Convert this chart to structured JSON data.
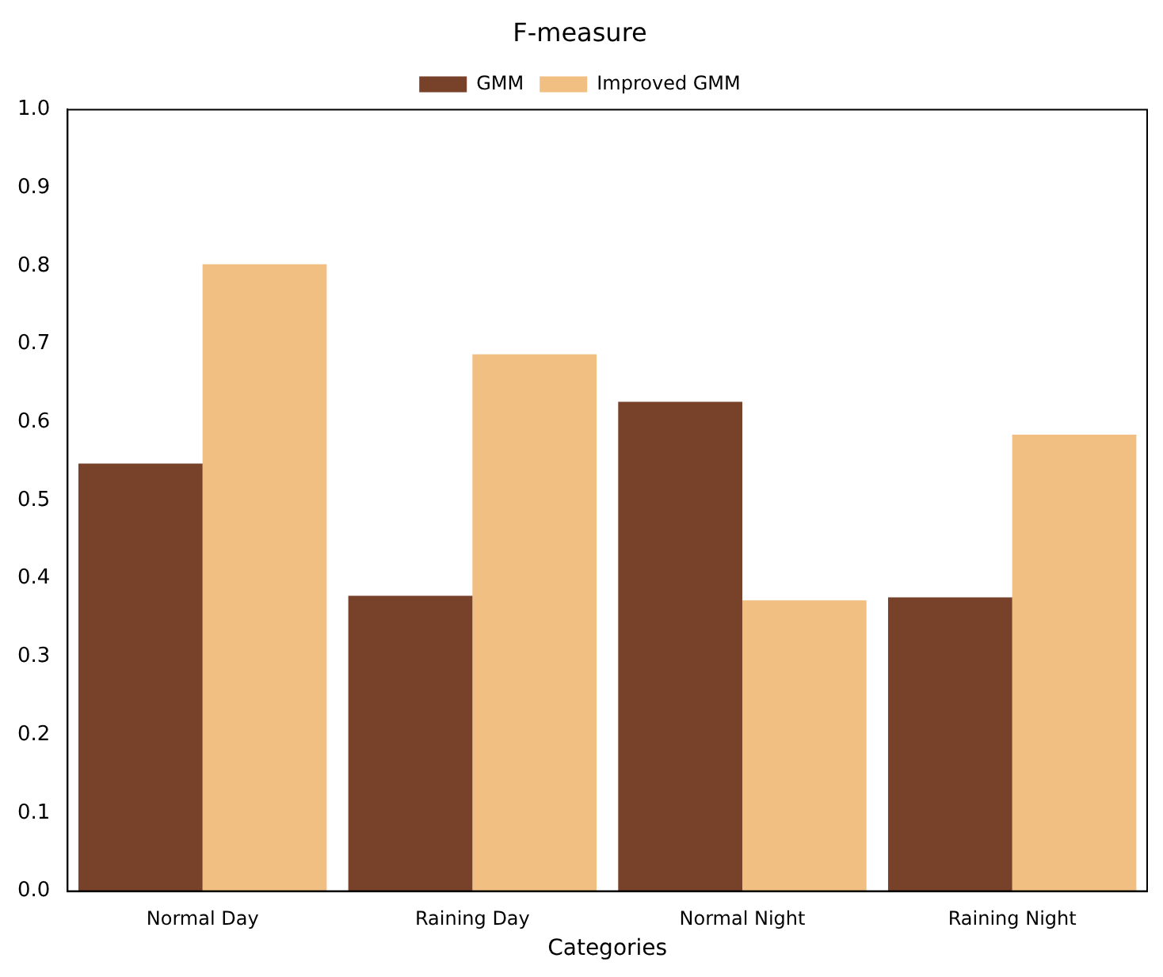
{
  "chart_data": {
    "type": "bar",
    "title": "F-measure",
    "xlabel": "Categories",
    "categories": [
      "Normal Day",
      "Raining Day",
      "Normal Night",
      "Raining Night"
    ],
    "series": [
      {
        "name": "GMM",
        "color": "#77412a",
        "values": [
          0.547,
          0.378,
          0.626,
          0.376
        ]
      },
      {
        "name": "Improved GMM",
        "color": "#f1bf82",
        "values": [
          0.802,
          0.687,
          0.372,
          0.584
        ]
      }
    ],
    "ylim": [
      0,
      1
    ],
    "yticks": [
      {
        "value": 0,
        "label": "0.0"
      },
      {
        "value": 0.1,
        "label": "0.1"
      },
      {
        "value": 0.2,
        "label": "0.2"
      },
      {
        "value": 0.3,
        "label": "0.3"
      },
      {
        "value": 0.4,
        "label": "0.4"
      },
      {
        "value": 0.5,
        "label": "0.5"
      },
      {
        "value": 0.6,
        "label": "0.6"
      },
      {
        "value": 0.7,
        "label": "0.7"
      },
      {
        "value": 0.8,
        "label": "0.8"
      },
      {
        "value": 0.9,
        "label": "0.9"
      },
      {
        "value": 1,
        "label": "1.0"
      }
    ],
    "grid": false,
    "legend": "top"
  }
}
